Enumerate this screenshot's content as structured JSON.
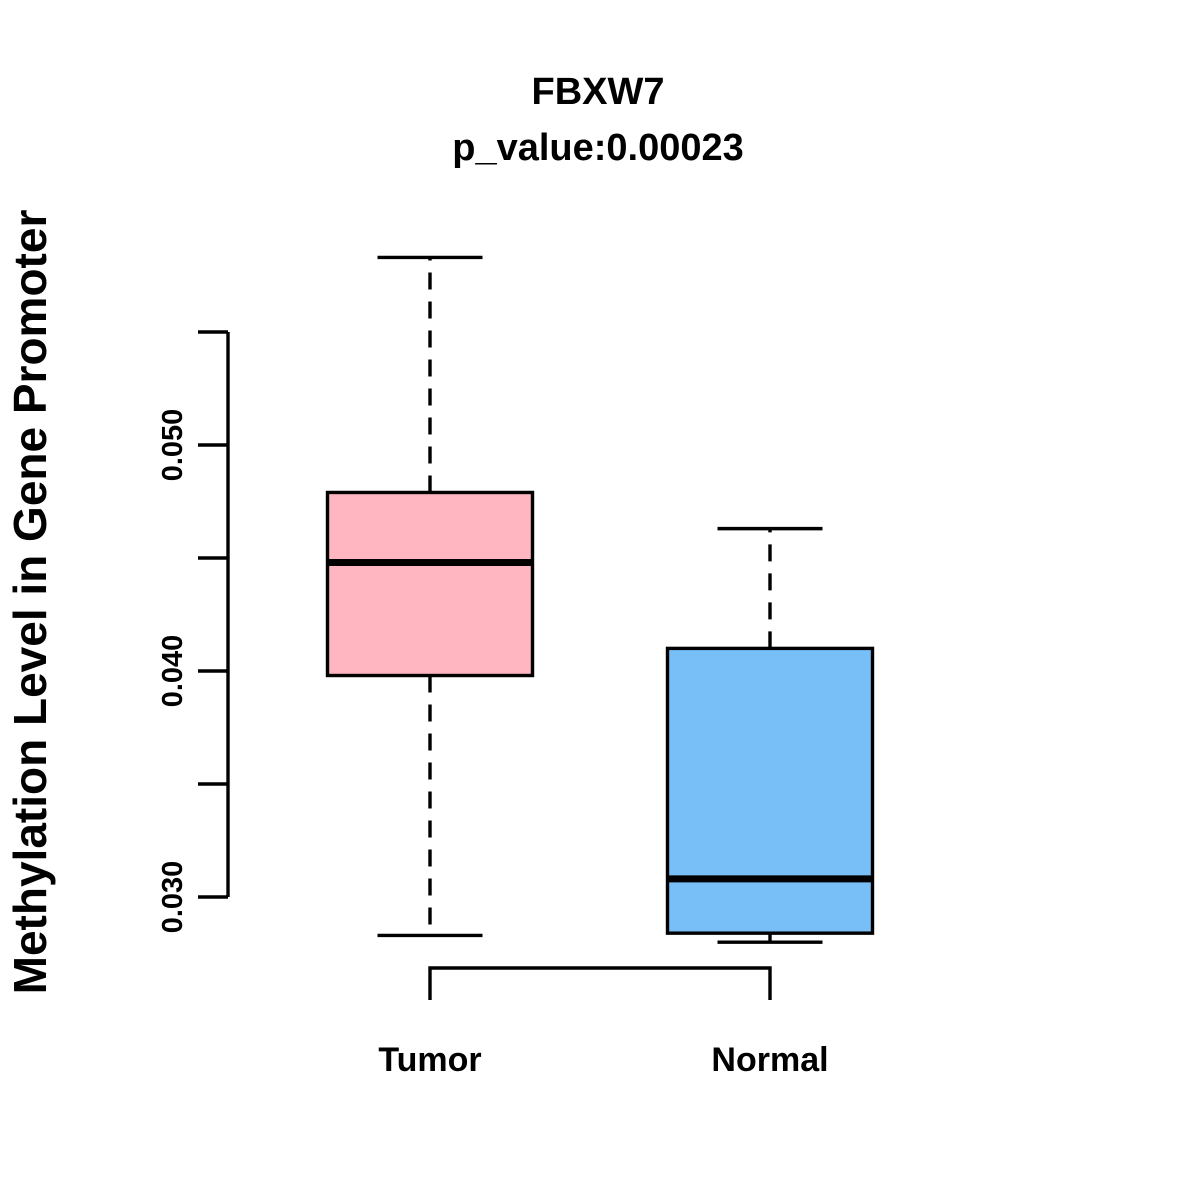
{
  "chart_data": {
    "type": "boxplot",
    "title": "FBXW7",
    "subtitle": "p_value:0.00023",
    "gene": "FBXW7",
    "p_value": "0.00023",
    "ylabel": "Methylation Level in Gene Promoter",
    "xlabel": "",
    "categories": [
      "Tumor",
      "Normal"
    ],
    "series": [
      {
        "name": "Tumor",
        "color": "#FFB6C1",
        "whisker_low": 0.0283,
        "q1": 0.0398,
        "median": 0.0448,
        "q3": 0.0479,
        "whisker_high": 0.0583,
        "outliers": []
      },
      {
        "name": "Normal",
        "color": "#79BFF7",
        "whisker_low": 0.028,
        "q1": 0.0284,
        "median": 0.0308,
        "q3": 0.041,
        "whisker_high": 0.0463,
        "outliers": []
      }
    ],
    "y_axis": {
      "range": [
        0.03,
        0.055
      ],
      "ticks_all": [
        0.03,
        0.035,
        0.04,
        0.045,
        0.05,
        0.055
      ],
      "ticks_labeled_values": [
        0.03,
        0.04,
        0.05
      ],
      "ticks_labeled_text": [
        "0.030",
        "0.040",
        "0.050"
      ]
    },
    "grid": false,
    "legend_position": "none",
    "colors": {
      "stroke": "#000000",
      "background": "#ffffff",
      "tumor_fill": "#FFB6C1",
      "normal_fill": "#79BFF7"
    }
  }
}
